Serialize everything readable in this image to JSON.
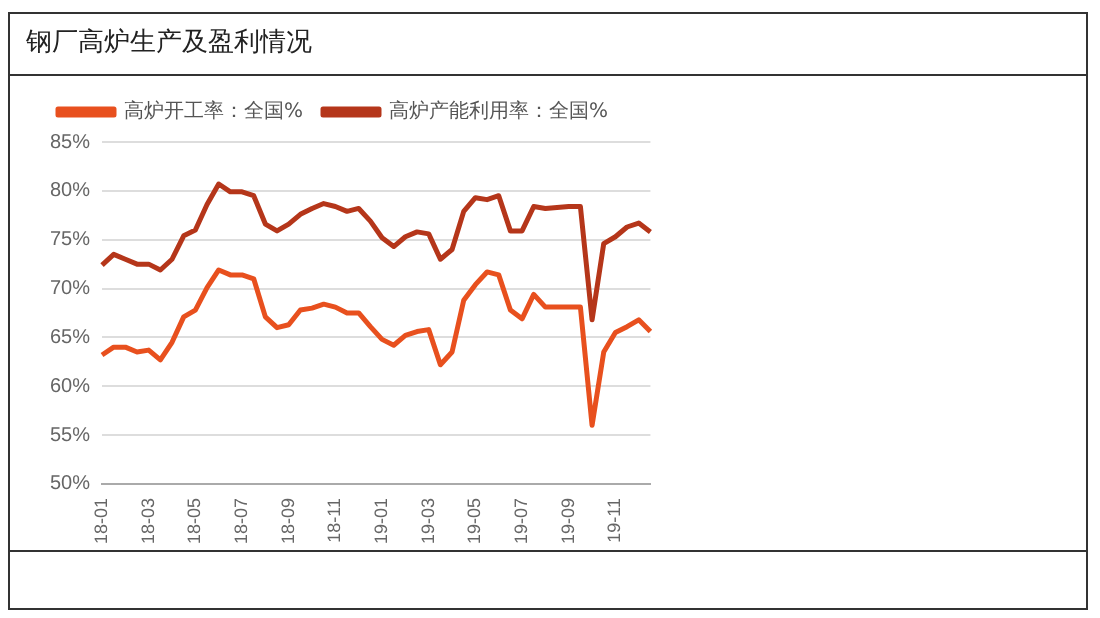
{
  "chart_data": {
    "type": "line",
    "title": "钢厂高炉生产及盈利情况",
    "categories": [
      "18-01",
      null,
      null,
      null,
      "18-03",
      null,
      null,
      null,
      "18-05",
      null,
      null,
      null,
      "18-07",
      null,
      null,
      null,
      "18-09",
      null,
      null,
      null,
      "18-11",
      null,
      null,
      null,
      "19-01",
      null,
      null,
      null,
      "19-03",
      null,
      null,
      null,
      "19-05",
      null,
      null,
      null,
      "19-07",
      null,
      null,
      null,
      "19-09",
      null,
      null,
      null,
      "19-11",
      null,
      null,
      null
    ],
    "series": [
      {
        "name": "高炉开工率：全国%",
        "color": "#e8501e",
        "values": [
          63.2,
          64.0,
          64.0,
          63.5,
          63.7,
          62.7,
          64.5,
          67.1,
          67.8,
          70.1,
          71.9,
          71.4,
          71.4,
          71.0,
          67.1,
          66.0,
          66.3,
          67.8,
          68.0,
          68.4,
          68.1,
          67.5,
          67.5,
          66.1,
          64.8,
          64.2,
          65.2,
          65.6,
          65.8,
          62.2,
          63.5,
          68.8,
          70.4,
          71.7,
          71.4,
          67.8,
          66.9,
          69.4,
          68.1,
          68.1,
          68.1,
          68.1,
          56.0,
          63.5,
          65.5,
          66.1,
          66.8,
          65.6
        ]
      },
      {
        "name": "高炉产能利用率：全国%",
        "color": "#b5361a",
        "values": [
          72.4,
          73.5,
          73.0,
          72.5,
          72.5,
          71.9,
          73.0,
          75.4,
          76.0,
          78.6,
          80.7,
          79.9,
          79.9,
          79.5,
          76.6,
          75.9,
          76.6,
          77.6,
          78.2,
          78.7,
          78.4,
          77.9,
          78.2,
          76.9,
          75.2,
          74.3,
          75.3,
          75.8,
          75.6,
          73.0,
          74.0,
          77.9,
          79.3,
          79.1,
          79.5,
          75.9,
          75.9,
          78.4,
          78.2,
          78.3,
          78.4,
          78.4,
          66.8,
          74.6,
          75.3,
          76.3,
          76.7,
          75.8
        ]
      }
    ],
    "ylim": [
      50,
      85
    ],
    "yticks": [
      {
        "value": 50,
        "label": "50%"
      },
      {
        "value": 55,
        "label": "55%"
      },
      {
        "value": 60,
        "label": "60%"
      },
      {
        "value": 65,
        "label": "65%"
      },
      {
        "value": 70,
        "label": "70%"
      },
      {
        "value": 75,
        "label": "75%"
      },
      {
        "value": 80,
        "label": "80%"
      },
      {
        "value": 85,
        "label": "85%"
      }
    ],
    "grid": "y",
    "legend": "top",
    "marker": "none",
    "line_style": "solid"
  }
}
